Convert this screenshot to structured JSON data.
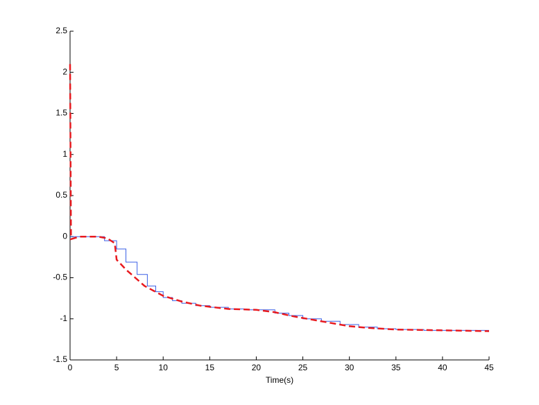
{
  "chart_data": {
    "type": "line",
    "xlabel": "Time(s)",
    "xlim": [
      0,
      45
    ],
    "xticks": [
      0,
      5,
      10,
      15,
      20,
      25,
      30,
      35,
      40,
      45
    ],
    "ylim": [
      -1.5,
      2.5
    ],
    "yticks": [
      -1.5,
      -1,
      -0.5,
      0,
      0.5,
      1,
      1.5,
      2,
      2.5
    ],
    "grid": false,
    "series": [
      {
        "color": "#3a5fe6",
        "style": "solid",
        "x": [
          0,
          3.7,
          3.7,
          5,
          5,
          6,
          6,
          7.2,
          7.2,
          8.3,
          8.3,
          9.2,
          9.2,
          10,
          10,
          11,
          11,
          12,
          12,
          13.5,
          13.5,
          15,
          15,
          17,
          17,
          19,
          19,
          22,
          22,
          23.5,
          23.5,
          25,
          25,
          27,
          27,
          29,
          29,
          31,
          31,
          33,
          33,
          35,
          35,
          38,
          38,
          45
        ],
        "values": [
          0,
          0,
          -0.05,
          -0.05,
          -0.15,
          -0.15,
          -0.31,
          -0.31,
          -0.46,
          -0.46,
          -0.6,
          -0.6,
          -0.67,
          -0.67,
          -0.74,
          -0.74,
          -0.78,
          -0.78,
          -0.81,
          -0.81,
          -0.84,
          -0.84,
          -0.86,
          -0.86,
          -0.88,
          -0.88,
          -0.89,
          -0.89,
          -0.93,
          -0.93,
          -0.96,
          -0.96,
          -1.0,
          -1.0,
          -1.03,
          -1.03,
          -1.07,
          -1.07,
          -1.1,
          -1.1,
          -1.12,
          -1.12,
          -1.13,
          -1.13,
          -1.14,
          -1.14
        ]
      },
      {
        "color": "#e8191e",
        "style": "dashed",
        "x": [
          0,
          0.1,
          1,
          3,
          4,
          4.8,
          5,
          6,
          7,
          8,
          9,
          10,
          12,
          14,
          17,
          20,
          22,
          24,
          26,
          28,
          30,
          32,
          35,
          40,
          45
        ],
        "values": [
          2.1,
          -0.03,
          0,
          0,
          -0.02,
          -0.08,
          -0.28,
          -0.4,
          -0.5,
          -0.6,
          -0.66,
          -0.72,
          -0.79,
          -0.84,
          -0.88,
          -0.89,
          -0.92,
          -0.97,
          -1.01,
          -1.05,
          -1.09,
          -1.11,
          -1.13,
          -1.14,
          -1.15
        ]
      }
    ]
  }
}
